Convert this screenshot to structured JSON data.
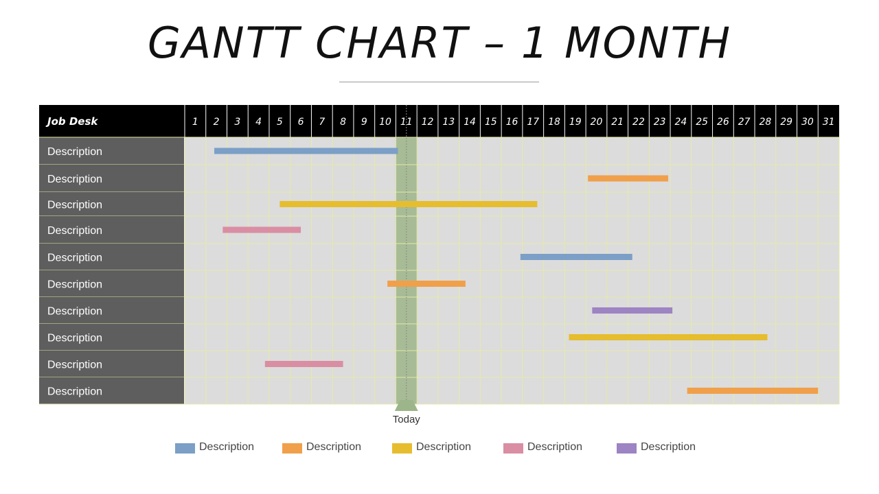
{
  "title": "GANTT CHART – 1 MONTH",
  "chart_data": {
    "type": "gantt",
    "header_label": "Job Desk",
    "days": [
      1,
      2,
      3,
      4,
      5,
      6,
      7,
      8,
      9,
      10,
      11,
      12,
      13,
      14,
      15,
      16,
      17,
      18,
      19,
      20,
      21,
      22,
      23,
      24,
      25,
      26,
      27,
      28,
      29,
      30,
      31
    ],
    "today": 11,
    "today_label": "Today",
    "colors": {
      "blue": "#7b9fc6",
      "orange": "#f0a04b",
      "yellow": "#e6bd2e",
      "pink": "#d98ea3",
      "purple": "#9d84c2",
      "row_label_bg": "#5e5e5e",
      "grid_bg": "#dcdcdc",
      "grid_line": "#e6eaa8",
      "today_band": "#9db58a",
      "header_bg": "#000000"
    },
    "rows": [
      {
        "label": "Description",
        "start": 2.4,
        "end": 11.1,
        "color": "blue"
      },
      {
        "label": "Description",
        "start": 20.1,
        "end": 23.9,
        "color": "orange"
      },
      {
        "label": "Description",
        "start": 5.5,
        "end": 17.7,
        "color": "yellow"
      },
      {
        "label": "Description",
        "start": 2.8,
        "end": 6.5,
        "color": "pink"
      },
      {
        "label": "Description",
        "start": 16.9,
        "end": 22.2,
        "color": "blue"
      },
      {
        "label": "Description",
        "start": 10.6,
        "end": 14.3,
        "color": "orange"
      },
      {
        "label": "Description",
        "start": 20.3,
        "end": 24.1,
        "color": "purple"
      },
      {
        "label": "Description",
        "start": 19.2,
        "end": 28.6,
        "color": "yellow"
      },
      {
        "label": "Description",
        "start": 4.8,
        "end": 8.5,
        "color": "pink"
      },
      {
        "label": "Description",
        "start": 24.8,
        "end": 31.0,
        "color": "orange"
      }
    ],
    "legend": [
      {
        "label": "Description",
        "color": "blue"
      },
      {
        "label": "Description",
        "color": "orange"
      },
      {
        "label": "Description",
        "color": "yellow"
      },
      {
        "label": "Description",
        "color": "pink"
      },
      {
        "label": "Description",
        "color": "purple"
      }
    ]
  }
}
